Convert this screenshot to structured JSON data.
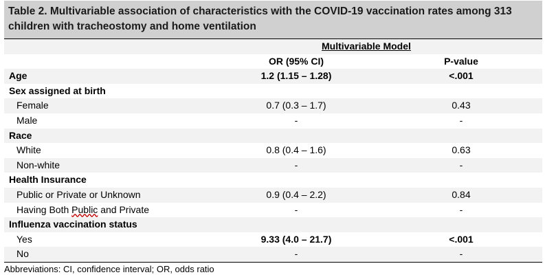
{
  "title": {
    "line1": "Table 2. Multivariable association of characteristics with the COVID-19 vaccination rates among 313",
    "line2": "children with tracheostomy and home ventilation"
  },
  "header": {
    "model": "Multivariable Model",
    "or_col": "OR (95% CI)",
    "p_col": "P-value"
  },
  "rows": [
    {
      "label": "Age",
      "or": "1.2 (1.15 – 1.28)",
      "p": "<.001"
    },
    {
      "label": "Sex assigned at birth",
      "or": "",
      "p": ""
    },
    {
      "label": "Female",
      "or": "0.7 (0.3 – 1.7)",
      "p": "0.43"
    },
    {
      "label": "Male",
      "or": "-",
      "p": "-"
    },
    {
      "label": "Race",
      "or": "",
      "p": ""
    },
    {
      "label": "White",
      "or": "0.8 (0.4 – 1.6)",
      "p": "0.63"
    },
    {
      "label": "Non-white",
      "or": "-",
      "p": "-"
    },
    {
      "label": "Health Insurance",
      "or": "",
      "p": ""
    },
    {
      "label": "Public or Private or Unknown",
      "or": "0.9 (0.4 –  2.2)",
      "p": "0.84"
    },
    {
      "label_a": "Having Both ",
      "label_b": "Public",
      "label_c": " and Private",
      "or": "-",
      "p": "-"
    },
    {
      "label": "Influenza vaccination status",
      "or": "",
      "p": ""
    },
    {
      "label": "Yes",
      "or": "9.33 (4.0 – 21.7)",
      "p": "<.001"
    },
    {
      "label": "No",
      "or": "-",
      "p": "-"
    }
  ],
  "footnote": "Abbreviations: CI, confidence interval; OR, odds ratio"
}
